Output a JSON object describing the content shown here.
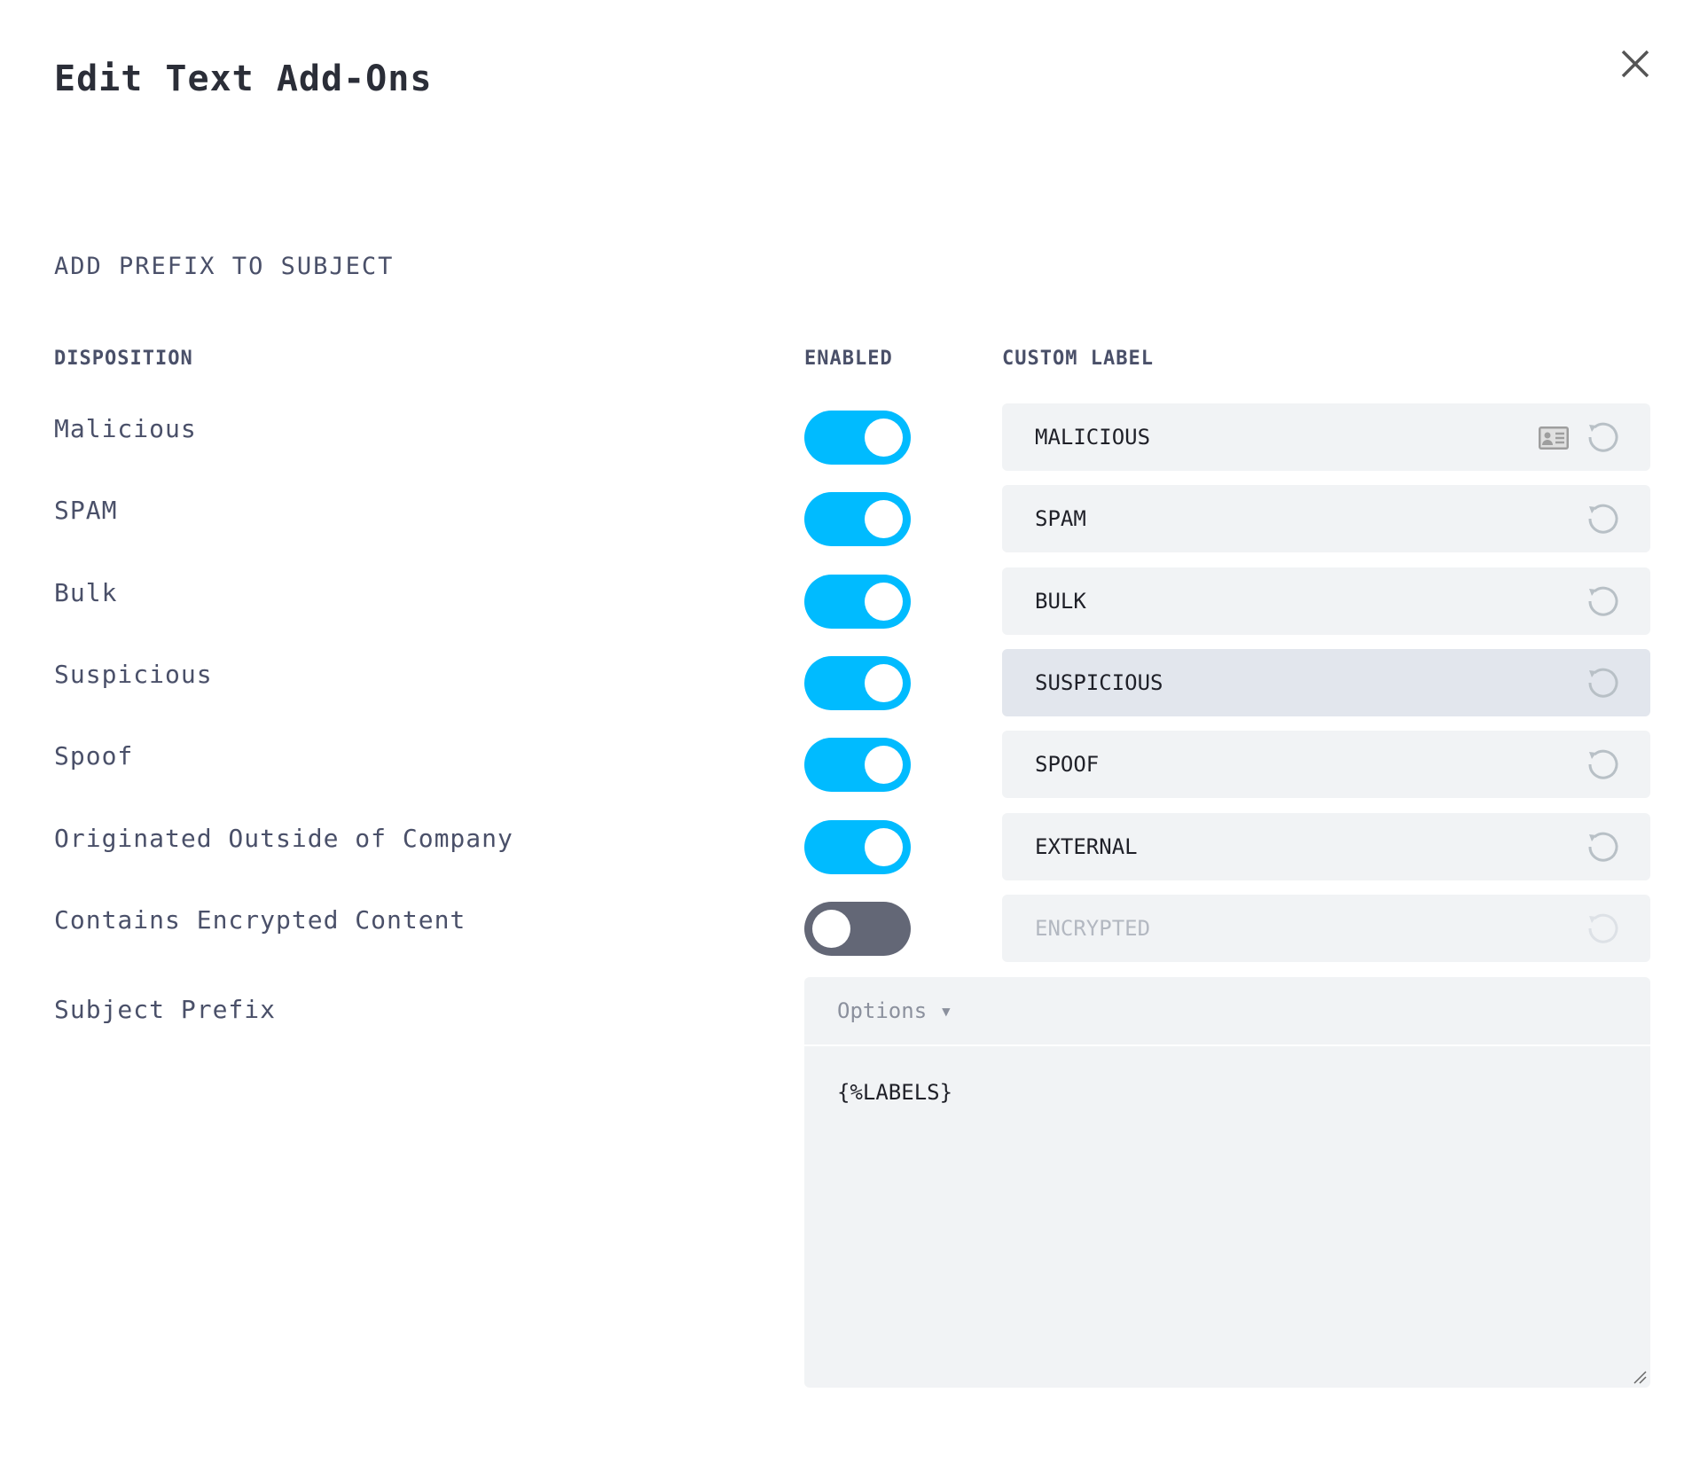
{
  "dialog": {
    "title": "Edit Text Add-Ons",
    "close_icon": "close-icon"
  },
  "section": "ADD PREFIX TO SUBJECT",
  "headers": {
    "disposition": "DISPOSITION",
    "enabled": "ENABLED",
    "custom_label": "CUSTOM LABEL"
  },
  "colors": {
    "toggle_on": "#00bbff",
    "toggle_off": "#636776"
  },
  "rows": [
    {
      "disposition": "Malicious",
      "enabled": true,
      "label": "MALICIOUS"
    },
    {
      "disposition": "SPAM",
      "enabled": true,
      "label": "SPAM"
    },
    {
      "disposition": "Bulk",
      "enabled": true,
      "label": "BULK"
    },
    {
      "disposition": "Suspicious",
      "enabled": true,
      "label": "SUSPICIOUS"
    },
    {
      "disposition": "Spoof",
      "enabled": true,
      "label": "SPOOF"
    },
    {
      "disposition": "Originated Outside of Company",
      "enabled": true,
      "label": "EXTERNAL"
    },
    {
      "disposition": "Contains Encrypted Content",
      "enabled": false,
      "label": "ENCRYPTED"
    }
  ],
  "subject_prefix": {
    "label": "Subject Prefix",
    "options_label": "Options ▾",
    "value": "{%LABELS}"
  }
}
